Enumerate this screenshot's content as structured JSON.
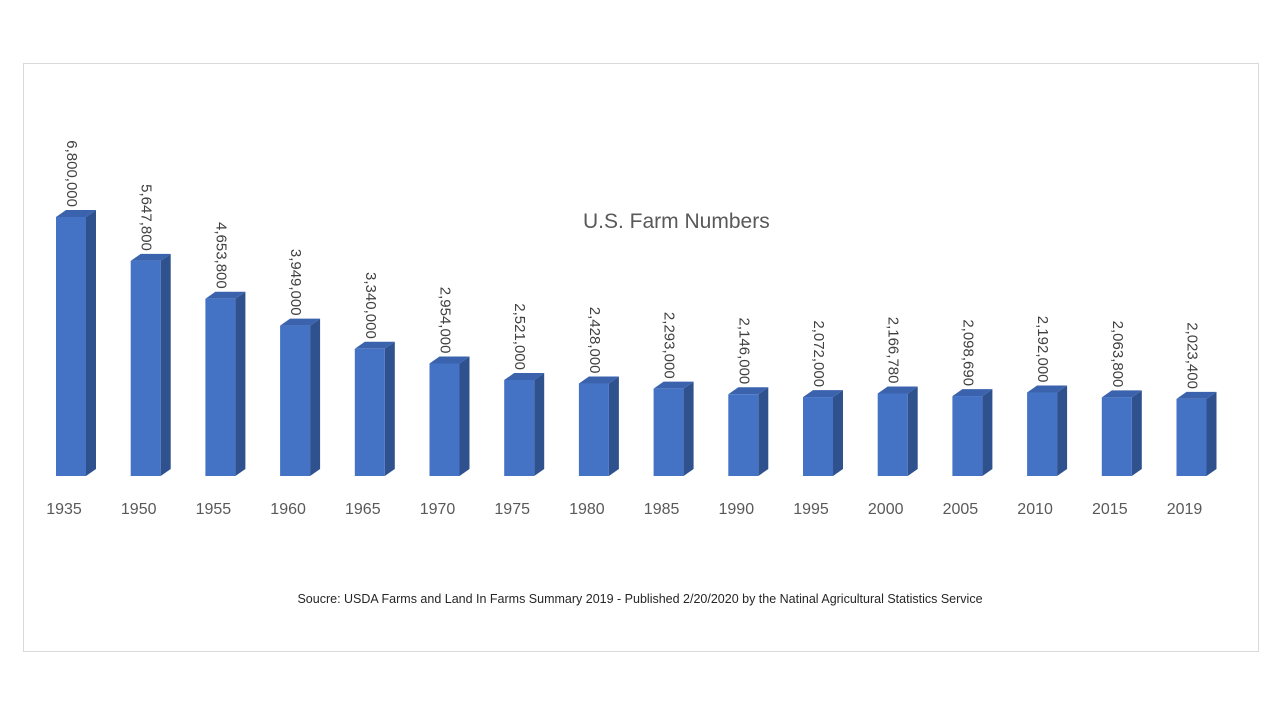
{
  "chart_data": {
    "type": "bar",
    "title": "U.S. Farm Numbers",
    "source": "Soucre: USDA Farms and Land In Farms Summary 2019 - Published 2/20/2020 by the Natinal Agricultural Statistics Service",
    "categories": [
      "1935",
      "1950",
      "1955",
      "1960",
      "1965",
      "1970",
      "1975",
      "1980",
      "1985",
      "1990",
      "1995",
      "2000",
      "2005",
      "2010",
      "2015",
      "2019"
    ],
    "values": [
      6800000,
      5647800,
      4653800,
      3949000,
      3340000,
      2954000,
      2521000,
      2428000,
      2293000,
      2146000,
      2072000,
      2166780,
      2098690,
      2192000,
      2063800,
      2023400
    ],
    "data_labels": [
      "6,800,000",
      "5,647,800",
      "4,653,800",
      "3,949,000",
      "3,340,000",
      "2,954,000",
      "2,521,000",
      "2,428,000",
      "2,293,000",
      "2,146,000",
      "2,072,000",
      "2,166,780",
      "2,098,690",
      "2,192,000",
      "2,063,800",
      "2,023,400"
    ],
    "xlabel": "",
    "ylabel": "",
    "ylim": [
      0,
      6800000
    ],
    "grid": false,
    "legend": "none",
    "colors": {
      "bar_front": "#4472c4",
      "bar_side": "#2f528f",
      "bar_top": "#3b63ad"
    }
  }
}
